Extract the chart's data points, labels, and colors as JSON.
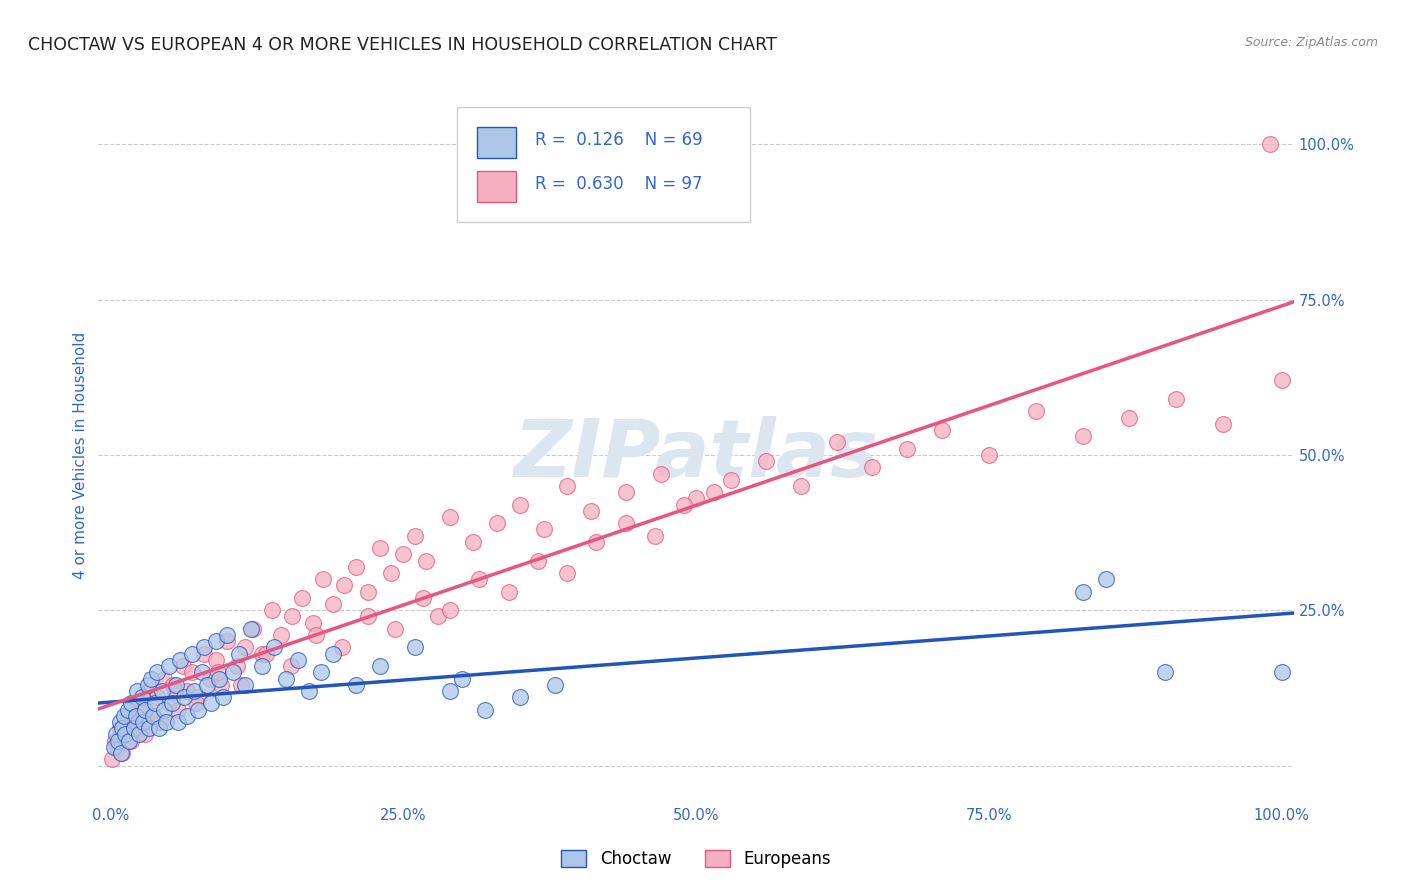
{
  "title": "CHOCTAW VS EUROPEAN 4 OR MORE VEHICLES IN HOUSEHOLD CORRELATION CHART",
  "source_text": "Source: ZipAtlas.com",
  "ylabel": "4 or more Vehicles in Household",
  "watermark": "ZIPatlas",
  "legend_label1": "Choctaw",
  "legend_label2": "Europeans",
  "R1": 0.126,
  "N1": 69,
  "R2": 0.63,
  "N2": 97,
  "color1": "#adc6e8",
  "color2": "#f5afc0",
  "line_color1": "#2255bb",
  "line_color2": "#e85580",
  "xlim": [
    -0.01,
    1.01
  ],
  "ylim": [
    -0.06,
    1.06
  ],
  "xticks": [
    0.0,
    0.25,
    0.5,
    0.75,
    1.0
  ],
  "yticks": [
    0.0,
    0.25,
    0.5,
    0.75,
    1.0
  ],
  "xticklabels": [
    "0.0%",
    "25.0%",
    "50.0%",
    "75.0%",
    "100.0%"
  ],
  "right_yticklabels": [
    "",
    "25.0%",
    "50.0%",
    "75.0%",
    "100.0%"
  ],
  "choctaw_x": [
    0.003,
    0.005,
    0.007,
    0.008,
    0.009,
    0.01,
    0.012,
    0.013,
    0.015,
    0.016,
    0.018,
    0.02,
    0.022,
    0.023,
    0.025,
    0.027,
    0.028,
    0.03,
    0.032,
    0.033,
    0.035,
    0.037,
    0.038,
    0.04,
    0.042,
    0.044,
    0.046,
    0.048,
    0.05,
    0.053,
    0.056,
    0.058,
    0.06,
    0.063,
    0.066,
    0.07,
    0.072,
    0.075,
    0.078,
    0.08,
    0.083,
    0.086,
    0.09,
    0.093,
    0.096,
    0.1,
    0.105,
    0.11,
    0.115,
    0.12,
    0.13,
    0.14,
    0.15,
    0.16,
    0.17,
    0.18,
    0.19,
    0.21,
    0.23,
    0.26,
    0.29,
    0.3,
    0.32,
    0.35,
    0.38,
    0.83,
    0.85,
    0.9,
    1.0
  ],
  "choctaw_y": [
    0.03,
    0.05,
    0.04,
    0.07,
    0.02,
    0.06,
    0.08,
    0.05,
    0.09,
    0.04,
    0.1,
    0.06,
    0.08,
    0.12,
    0.05,
    0.11,
    0.07,
    0.09,
    0.13,
    0.06,
    0.14,
    0.08,
    0.1,
    0.15,
    0.06,
    0.12,
    0.09,
    0.07,
    0.16,
    0.1,
    0.13,
    0.07,
    0.17,
    0.11,
    0.08,
    0.18,
    0.12,
    0.09,
    0.15,
    0.19,
    0.13,
    0.1,
    0.2,
    0.14,
    0.11,
    0.21,
    0.15,
    0.18,
    0.13,
    0.22,
    0.16,
    0.19,
    0.14,
    0.17,
    0.12,
    0.15,
    0.18,
    0.13,
    0.16,
    0.19,
    0.12,
    0.14,
    0.09,
    0.11,
    0.13,
    0.28,
    0.3,
    0.15,
    0.15
  ],
  "european_x": [
    0.002,
    0.004,
    0.006,
    0.008,
    0.01,
    0.012,
    0.015,
    0.018,
    0.02,
    0.023,
    0.025,
    0.028,
    0.03,
    0.033,
    0.036,
    0.04,
    0.043,
    0.046,
    0.05,
    0.054,
    0.058,
    0.062,
    0.066,
    0.07,
    0.075,
    0.08,
    0.085,
    0.09,
    0.095,
    0.1,
    0.108,
    0.115,
    0.122,
    0.13,
    0.138,
    0.146,
    0.155,
    0.164,
    0.173,
    0.182,
    0.19,
    0.2,
    0.21,
    0.22,
    0.23,
    0.24,
    0.25,
    0.26,
    0.27,
    0.28,
    0.29,
    0.31,
    0.33,
    0.35,
    0.37,
    0.39,
    0.41,
    0.44,
    0.47,
    0.5,
    0.53,
    0.56,
    0.59,
    0.62,
    0.65,
    0.68,
    0.71,
    0.75,
    0.79,
    0.83,
    0.87,
    0.91,
    0.95,
    0.99,
    0.037,
    0.055,
    0.073,
    0.092,
    0.112,
    0.133,
    0.154,
    0.176,
    0.198,
    0.22,
    0.243,
    0.267,
    0.29,
    0.315,
    0.34,
    0.365,
    0.39,
    0.415,
    0.44,
    0.465,
    0.49,
    0.515,
    1.0
  ],
  "european_y": [
    0.01,
    0.04,
    0.03,
    0.06,
    0.02,
    0.05,
    0.08,
    0.04,
    0.07,
    0.1,
    0.06,
    0.09,
    0.05,
    0.12,
    0.08,
    0.11,
    0.07,
    0.14,
    0.1,
    0.13,
    0.09,
    0.16,
    0.12,
    0.15,
    0.11,
    0.18,
    0.14,
    0.17,
    0.13,
    0.2,
    0.16,
    0.19,
    0.22,
    0.18,
    0.25,
    0.21,
    0.24,
    0.27,
    0.23,
    0.3,
    0.26,
    0.29,
    0.32,
    0.28,
    0.35,
    0.31,
    0.34,
    0.37,
    0.33,
    0.24,
    0.4,
    0.36,
    0.39,
    0.42,
    0.38,
    0.45,
    0.41,
    0.44,
    0.47,
    0.43,
    0.46,
    0.49,
    0.45,
    0.52,
    0.48,
    0.51,
    0.54,
    0.5,
    0.57,
    0.53,
    0.56,
    0.59,
    0.55,
    1.0,
    0.08,
    0.12,
    0.1,
    0.15,
    0.13,
    0.18,
    0.16,
    0.21,
    0.19,
    0.24,
    0.22,
    0.27,
    0.25,
    0.3,
    0.28,
    0.33,
    0.31,
    0.36,
    0.39,
    0.37,
    0.42,
    0.44,
    0.62
  ],
  "background_color": "#ffffff",
  "grid_color": "#cccccc",
  "title_color": "#222222",
  "axis_label_color": "#3366cc",
  "tick_color": "#3366cc",
  "title_fontsize": 12.5,
  "axis_label_fontsize": 11,
  "tick_fontsize": 10.5,
  "legend_fontsize": 12,
  "watermark_color": "#dce6f0",
  "watermark_fontsize": 58,
  "source_fontsize": 9,
  "source_color": "#888888"
}
